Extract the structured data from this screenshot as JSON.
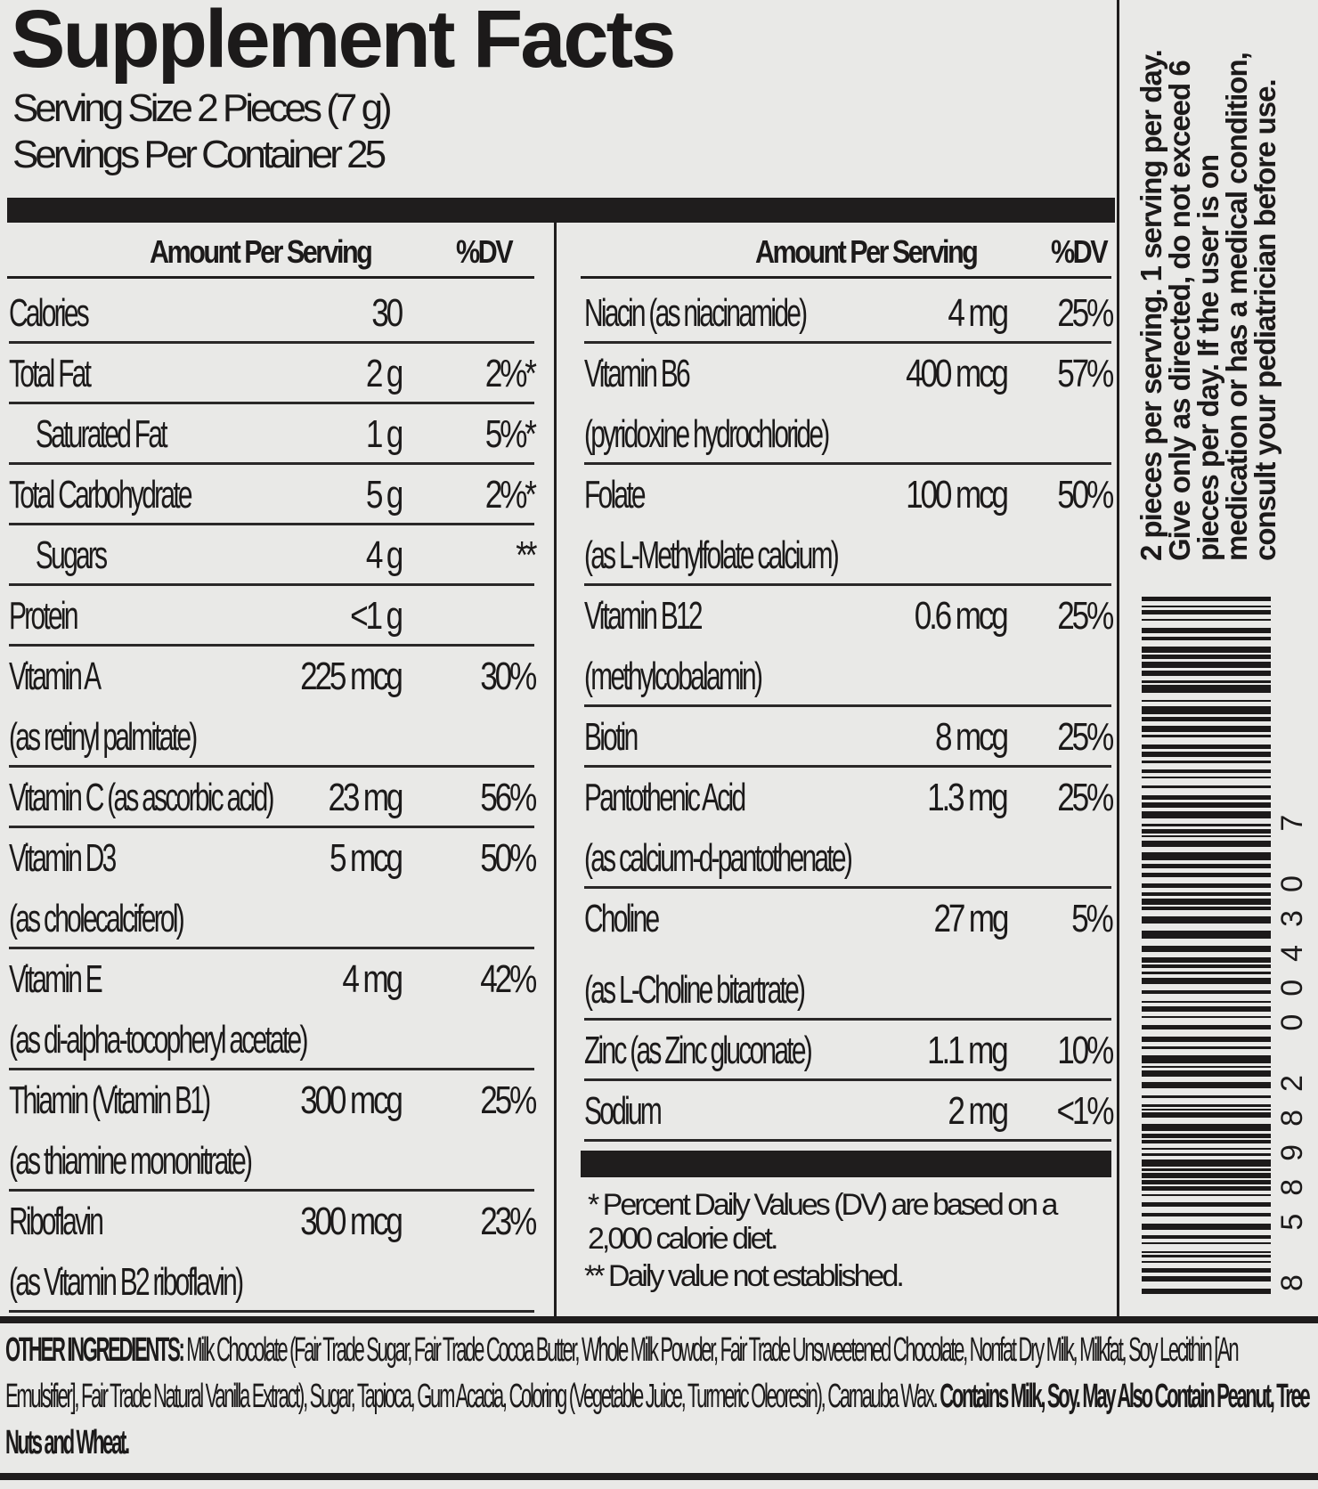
{
  "title": "Supplement Facts",
  "serving_size": "Serving Size 2 Pieces (7 g)",
  "servings_per_container": "Servings Per Container 25",
  "header": {
    "amount": "Amount Per Serving",
    "dv": "%DV"
  },
  "left_rows": [
    {
      "name": "Calories",
      "amount": "30",
      "dv": ""
    },
    {
      "name": "Total Fat",
      "amount": "2 g",
      "dv": "2%*"
    },
    {
      "name": "Saturated Fat",
      "amount": "1 g",
      "dv": "5%*",
      "indent": true
    },
    {
      "name": "Total Carbohydrate",
      "amount": "5 g",
      "dv": "2%*"
    },
    {
      "name": "Sugars",
      "amount": "4 g",
      "dv": "**",
      "indent": true
    },
    {
      "name": "Protein",
      "amount": "<1 g",
      "dv": ""
    },
    {
      "name": "Vitamin A",
      "sub": "(as retinyl palmitate)",
      "amount": "225 mcg",
      "dv": "30%"
    },
    {
      "name": "Vitamin C (as ascorbic acid)",
      "amount": "23 mg",
      "dv": "56%"
    },
    {
      "name": "Vitamin D3",
      "sub": "(as cholecalciferol)",
      "amount": "5 mcg",
      "dv": "50%"
    },
    {
      "name": "Vitamin E",
      "sub": "(as di-alpha-tocopheryl acetate)",
      "amount": "4 mg",
      "dv": "42%"
    },
    {
      "name": "Thiamin (Vitamin B1)",
      "sub": "(as thiamine mononitrate)",
      "amount": "300 mcg",
      "dv": "25%"
    },
    {
      "name": "Riboflavin",
      "sub": "(as Vitamin B2 riboflavin)",
      "amount": "300 mcg",
      "dv": "23%"
    }
  ],
  "right_rows": [
    {
      "name": "Niacin (as niacinamide)",
      "amount": "4 mg",
      "dv": "25%"
    },
    {
      "name": "Vitamin B6",
      "sub": "(pyridoxine hydrochloride)",
      "amount": "400 mcg",
      "dv": "57%"
    },
    {
      "name": "Folate",
      "sub": "(as L-Methylfolate calcium)",
      "amount": "100 mcg",
      "dv": "50%"
    },
    {
      "name": "Vitamin B12",
      "sub": "(methylcobalamin)",
      "amount": "0.6 mcg",
      "dv": "25%"
    },
    {
      "name": "Biotin",
      "amount": "8 mcg",
      "dv": "25%"
    },
    {
      "name": "Pantothenic Acid",
      "sub": "(as calcium-d-pantothenate)",
      "amount": "1.3 mg",
      "dv": "25%"
    },
    {
      "name": "Choline",
      "sub": "(as L-Choline bitartrate)",
      "amount": "27 mg",
      "dv": "5%"
    },
    {
      "name": "Zinc (as Zinc gluconate)",
      "amount": "1.1 mg",
      "dv": "10%"
    },
    {
      "name": "Sodium",
      "amount": "2 mg",
      "dv": "<1%"
    }
  ],
  "footnotes": [
    "* Percent Daily Values (DV) are based on a 2,000 calorie diet.",
    "** Daily value not established."
  ],
  "side_text": "2 pieces per serving. 1 serving per day. Give only as directed, do not exceed 6 pieces per day. If the user is on medication or has a medical condition, consult your pediatrician before use.",
  "barcode": {
    "digits": "8 58982 00430 7"
  },
  "ingredients": {
    "label": "OTHER INGREDIENTS:",
    "text": " Milk Chocolate (Fair Trade Sugar, Fair Trade Cocoa Butter, Whole Milk Powder, Fair Trade Unsweetened Chocolate, Nonfat Dry Milk, Milkfat, Soy Lecithin [An Emulsifier], Fair Trade Natural Vanilla Extract), Sugar, Tapioca, Gum Acacia, Coloring (Vegetable Juice, Turmeric Oleoresin), Carnauba Wax. ",
    "allergens": "Contains Milk, Soy. May Also Contain Peanut, Tree Nuts and Wheat."
  }
}
